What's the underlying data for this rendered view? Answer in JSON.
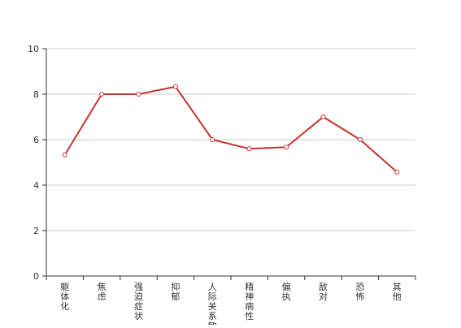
{
  "chart_data": {
    "type": "line",
    "categories": [
      "躯体化",
      "焦虑",
      "强迫症状",
      "抑郁",
      "人际关系敏感",
      "精神病性",
      "偏执",
      "敌对",
      "恐怖",
      "其他"
    ],
    "series": [
      {
        "values": [
          5.33,
          8.0,
          8.0,
          8.33,
          6.0,
          5.6,
          5.67,
          7.0,
          6.0,
          4.57
        ]
      }
    ],
    "ylim": [
      0,
      10
    ],
    "yticks": [
      0,
      2,
      4,
      6,
      8,
      10
    ],
    "grid": true,
    "colors": {
      "line": "#c23531",
      "grid": "#cccccc",
      "axis": "#333333"
    }
  }
}
